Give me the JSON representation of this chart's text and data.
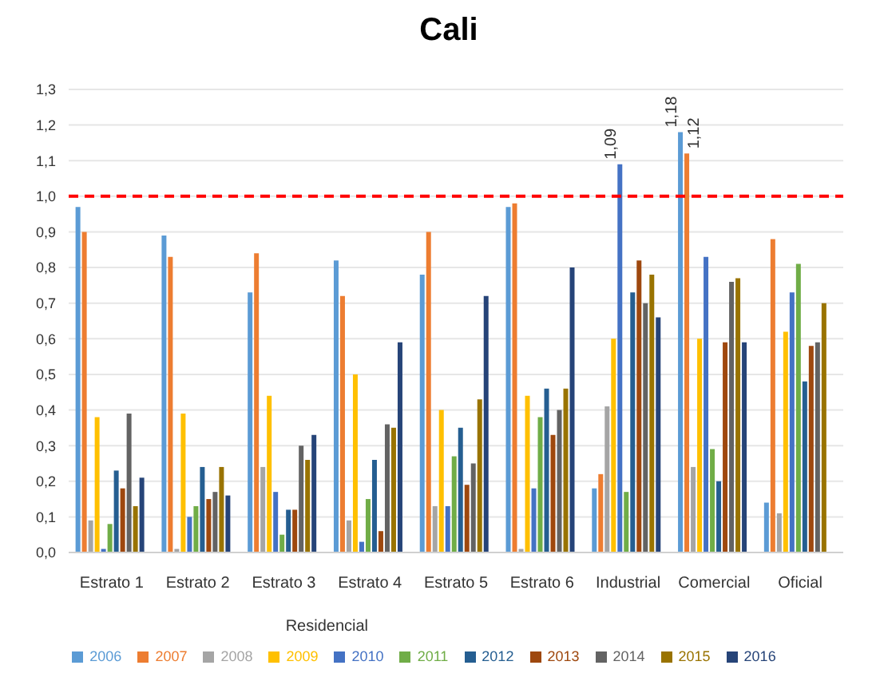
{
  "chart_data": {
    "type": "bar",
    "title": "Cali",
    "categories": [
      "Estrato 1",
      "Estrato 2",
      "Estrato 3",
      "Estrato 4",
      "Estrato 5",
      "Estrato 6",
      "Industrial",
      "Comercial",
      "Oficial"
    ],
    "annotations": [
      "Residencial"
    ],
    "series": [
      {
        "name": "2006",
        "color": "#5b9bd5",
        "values": [
          0.97,
          0.89,
          0.73,
          0.82,
          0.78,
          0.97,
          0.18,
          1.18,
          0.14
        ],
        "value_labels": [
          null,
          null,
          null,
          null,
          null,
          null,
          null,
          "1,18",
          null
        ]
      },
      {
        "name": "2007",
        "color": "#ed7d31",
        "values": [
          0.9,
          0.83,
          0.84,
          0.72,
          0.9,
          0.98,
          0.22,
          1.12,
          0.88
        ],
        "value_labels": [
          null,
          null,
          null,
          null,
          null,
          null,
          null,
          "1,12",
          null
        ]
      },
      {
        "name": "2008",
        "color": "#a5a5a5",
        "values": [
          0.09,
          0.01,
          0.24,
          0.09,
          0.13,
          0.01,
          0.41,
          0.24,
          0.11
        ]
      },
      {
        "name": "2009",
        "color": "#ffc000",
        "values": [
          0.38,
          0.39,
          0.44,
          0.5,
          0.4,
          0.44,
          0.6,
          0.6,
          0.62
        ]
      },
      {
        "name": "2010",
        "color": "#4472c4",
        "values": [
          0.01,
          0.1,
          0.17,
          0.03,
          0.13,
          0.18,
          1.09,
          0.83,
          0.73
        ],
        "value_labels": [
          null,
          null,
          null,
          null,
          null,
          null,
          "1,09",
          null,
          null
        ]
      },
      {
        "name": "2011",
        "color": "#70ad47",
        "values": [
          0.08,
          0.13,
          0.05,
          0.15,
          0.27,
          0.38,
          0.17,
          0.29,
          0.81
        ]
      },
      {
        "name": "2012",
        "color": "#255e91",
        "values": [
          0.23,
          0.24,
          0.12,
          0.26,
          0.35,
          0.46,
          0.73,
          0.2,
          0.48
        ]
      },
      {
        "name": "2013",
        "color": "#9e480e",
        "values": [
          0.18,
          0.15,
          0.12,
          0.06,
          0.19,
          0.33,
          0.82,
          0.59,
          0.58
        ]
      },
      {
        "name": "2014",
        "color": "#636363",
        "values": [
          0.39,
          0.17,
          0.3,
          0.36,
          0.25,
          0.4,
          0.7,
          0.76,
          0.59
        ]
      },
      {
        "name": "2015",
        "color": "#997300",
        "values": [
          0.13,
          0.24,
          0.26,
          0.35,
          0.43,
          0.46,
          0.78,
          0.77,
          0.7
        ]
      },
      {
        "name": "2016",
        "color": "#264478",
        "values": [
          0.21,
          0.16,
          0.33,
          0.59,
          0.72,
          0.8,
          0.66,
          0.59,
          null
        ]
      }
    ],
    "ylim": [
      0,
      1.3
    ],
    "yticks": [
      {
        "value": 0,
        "label": "0,0"
      },
      {
        "value": 0.1,
        "label": "0,1"
      },
      {
        "value": 0.2,
        "label": "0,2"
      },
      {
        "value": 0.3,
        "label": "0,3"
      },
      {
        "value": 0.4,
        "label": "0,4"
      },
      {
        "value": 0.5,
        "label": "0,5"
      },
      {
        "value": 0.6,
        "label": "0,6"
      },
      {
        "value": 0.7,
        "label": "0,7"
      },
      {
        "value": 0.8,
        "label": "0,8"
      },
      {
        "value": 0.9,
        "label": "0,9"
      },
      {
        "value": 1.0,
        "label": "1,0"
      },
      {
        "value": 1.1,
        "label": "1,1"
      },
      {
        "value": 1.2,
        "label": "1,2"
      },
      {
        "value": 1.3,
        "label": "1,3"
      }
    ],
    "ref_lines": [
      {
        "axis": "y",
        "value": 1.0,
        "color": "#ff0000",
        "line_style": "dashed"
      }
    ],
    "grid": "y",
    "legend": "bottom"
  }
}
